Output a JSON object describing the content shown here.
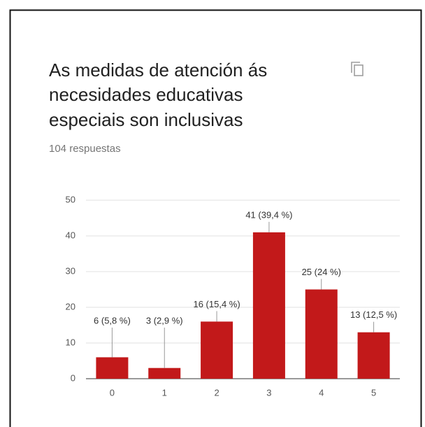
{
  "chart_data": {
    "type": "bar",
    "title": [
      "As medidas de atención ás",
      "necesidades educativas",
      "especiais son inclusivas"
    ],
    "subtitle": "104 respuestas",
    "categories": [
      "0",
      "1",
      "2",
      "3",
      "4",
      "5"
    ],
    "values": [
      6,
      3,
      16,
      41,
      25,
      13
    ],
    "value_labels": [
      "6 (5,8 %)",
      "3 (2,9 %)",
      "16 (15,4 %)",
      "41 (39,4 %)",
      "25 (24 %)",
      "13 (12,5 %)"
    ],
    "color": "#c2191a",
    "ylim": [
      0,
      50
    ],
    "yticks": [
      0,
      10,
      20,
      30,
      40,
      50
    ],
    "grid": true
  }
}
